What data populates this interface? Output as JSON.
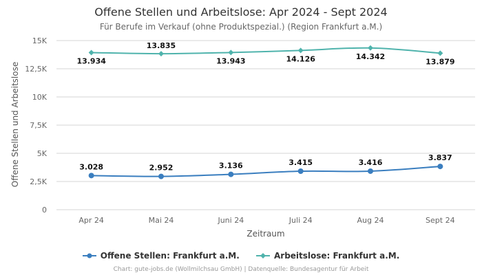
{
  "chart_data": {
    "type": "line",
    "title": "Offene Stellen und Arbeitslose: Apr 2024 - Sept 2024",
    "subtitle": "Für Berufe im Verkauf (ohne Produktspezial.) (Region Frankfurt a.M.)",
    "xlabel": "Zeitraum",
    "ylabel": "Offene Stellen und Arbeitslose",
    "categories": [
      "Apr 24",
      "Mai 24",
      "Juni 24",
      "Juli 24",
      "Aug 24",
      "Sept 24"
    ],
    "ylim": [
      0,
      15000
    ],
    "yticks": [
      0,
      2500,
      5000,
      7500,
      10000,
      12500,
      15000
    ],
    "ytick_labels": [
      "0",
      "2,5K",
      "5K",
      "7,5K",
      "10K",
      "12,5K",
      "15K"
    ],
    "grid": true,
    "legend": "bottom",
    "series": [
      {
        "name": "Offene Stellen: Frankfurt a.M.",
        "color": "#3a7ebf",
        "marker": "circle",
        "values": [
          3028,
          2952,
          3136,
          3415,
          3416,
          3837
        ],
        "labels": [
          "3.028",
          "2.952",
          "3.136",
          "3.415",
          "3.416",
          "3.837"
        ]
      },
      {
        "name": "Arbeitslose: Frankfurt a.M.",
        "color": "#4fb3ac",
        "marker": "diamond",
        "values": [
          13934,
          13835,
          13943,
          14126,
          14342,
          13879
        ],
        "labels": [
          "13.934",
          "13.835",
          "13.943",
          "14.126",
          "14.342",
          "13.879"
        ]
      }
    ]
  },
  "credits": "Chart: gute-jobs.de (Wollmilchsau GmbH) | Datenquelle: Bundesagentur für Arbeit"
}
